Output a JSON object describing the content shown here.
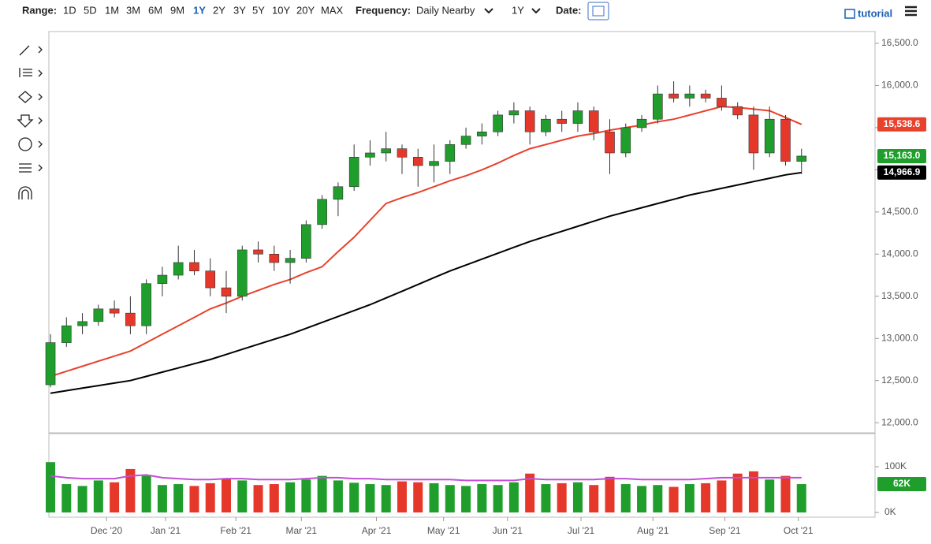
{
  "toolbar": {
    "range_label": "Range:",
    "ranges": [
      "1D",
      "5D",
      "1M",
      "3M",
      "6M",
      "9M",
      "1Y",
      "2Y",
      "3Y",
      "5Y",
      "10Y",
      "20Y",
      "MAX"
    ],
    "active_range": 6,
    "frequency_label": "Frequency:",
    "frequency": "Daily Nearby",
    "period": "1Y",
    "date_label": "Date:",
    "tutorial": "tutorial"
  },
  "chart_data": {
    "type": "candlestick",
    "x": [
      0,
      1,
      2,
      3,
      4,
      5,
      6,
      7,
      8,
      9,
      10,
      11,
      12,
      13,
      14,
      15,
      16,
      17,
      18,
      19,
      20,
      21,
      22,
      23,
      24,
      25,
      26,
      27,
      28,
      29,
      30,
      31,
      32,
      33,
      34,
      35,
      36,
      37,
      38,
      39,
      40,
      41,
      42,
      43,
      44,
      45,
      46,
      47
    ],
    "open": [
      12450,
      12950,
      13150,
      13200,
      13350,
      13300,
      13150,
      13650,
      13750,
      13900,
      13800,
      13600,
      13500,
      14050,
      14000,
      13900,
      13950,
      14350,
      14650,
      14800,
      15150,
      15200,
      15250,
      15150,
      15050,
      15100,
      15300,
      15400,
      15450,
      15650,
      15700,
      15450,
      15600,
      15550,
      15700,
      15450,
      15200,
      15500,
      15600,
      15900,
      15850,
      15900,
      15850,
      15750,
      15650,
      15200,
      15600,
      15100
    ],
    "high": [
      13050,
      13250,
      13300,
      13400,
      13450,
      13500,
      13700,
      13850,
      14100,
      14050,
      13950,
      13800,
      14100,
      14150,
      14100,
      14050,
      14400,
      14700,
      14850,
      15300,
      15350,
      15450,
      15300,
      15250,
      15300,
      15350,
      15500,
      15550,
      15700,
      15800,
      15750,
      15650,
      15700,
      15800,
      15750,
      15600,
      15550,
      15650,
      16000,
      16050,
      16000,
      15950,
      16000,
      15800,
      15750,
      15750,
      15650,
      15250
    ],
    "low": [
      12420,
      12900,
      13050,
      13150,
      13250,
      13050,
      13050,
      13500,
      13700,
      13750,
      13500,
      13300,
      13450,
      13900,
      13800,
      13650,
      13900,
      14300,
      14450,
      14750,
      15050,
      15100,
      14950,
      14800,
      14850,
      14950,
      15250,
      15300,
      15400,
      15550,
      15300,
      15400,
      15450,
      15450,
      15350,
      14950,
      15150,
      15450,
      15550,
      15800,
      15750,
      15800,
      15700,
      15600,
      15000,
      15150,
      15050,
      14950
    ],
    "close": [
      12950,
      13150,
      13200,
      13350,
      13300,
      13150,
      13650,
      13750,
      13900,
      13800,
      13600,
      13500,
      14050,
      14000,
      13900,
      13950,
      14350,
      14650,
      14800,
      15150,
      15200,
      15250,
      15150,
      15050,
      15100,
      15300,
      15400,
      15450,
      15650,
      15700,
      15450,
      15600,
      15550,
      15700,
      15450,
      15200,
      15500,
      15600,
      15900,
      15850,
      15900,
      15850,
      15750,
      15650,
      15200,
      15600,
      15100,
      15163
    ],
    "close_label": "15,163.0",
    "up_color": "#1f9e2c",
    "down_color": "#e5382a",
    "moving_averages": [
      {
        "color": "#e8412c",
        "last_label": "15,538.6",
        "values": [
          12550,
          12610,
          12670,
          12730,
          12790,
          12850,
          12950,
          13050,
          13150,
          13250,
          13350,
          13420,
          13500,
          13570,
          13640,
          13700,
          13780,
          13850,
          14030,
          14200,
          14400,
          14600,
          14670,
          14730,
          14800,
          14870,
          14930,
          15000,
          15080,
          15170,
          15250,
          15300,
          15350,
          15400,
          15430,
          15470,
          15500,
          15530,
          15570,
          15600,
          15650,
          15700,
          15750,
          15740,
          15720,
          15700,
          15620,
          15538.6
        ]
      },
      {
        "color": "#000000",
        "last_label": "14,966.9",
        "values": [
          12350,
          12380,
          12410,
          12440,
          12470,
          12500,
          12550,
          12600,
          12650,
          12700,
          12750,
          12810,
          12870,
          12930,
          12990,
          13050,
          13120,
          13190,
          13260,
          13330,
          13400,
          13480,
          13560,
          13640,
          13720,
          13800,
          13870,
          13940,
          14010,
          14080,
          14150,
          14210,
          14270,
          14330,
          14390,
          14450,
          14500,
          14550,
          14600,
          14650,
          14700,
          14740,
          14780,
          14820,
          14860,
          14900,
          14940,
          14966.9
        ]
      }
    ],
    "ylim": [
      11880,
      16640
    ],
    "yticks": [
      {
        "value": 12000,
        "label": "12,000.0"
      },
      {
        "value": 12500,
        "label": "12,500.0"
      },
      {
        "value": 13000,
        "label": "13,000.0"
      },
      {
        "value": 13500,
        "label": "13,500.0"
      },
      {
        "value": 14000,
        "label": "14,000.0"
      },
      {
        "value": 14500,
        "label": "14,500.0"
      },
      {
        "value": 15000,
        "label": "15,000.0"
      },
      {
        "value": 15500,
        "label": "15,500.0"
      },
      {
        "value": 16000,
        "label": "16,000.0"
      },
      {
        "value": 16500,
        "label": "16,500.0"
      }
    ],
    "xlim": [
      -0.1,
      51.6
    ],
    "xticks": [
      {
        "value": 3.5,
        "label": "Dec '20"
      },
      {
        "value": 7.2,
        "label": "Jan '21"
      },
      {
        "value": 11.6,
        "label": "Feb '21"
      },
      {
        "value": 15.7,
        "label": "Mar '21"
      },
      {
        "value": 20.4,
        "label": "Apr '21"
      },
      {
        "value": 24.6,
        "label": "May '21"
      },
      {
        "value": 28.6,
        "label": "Jun '21"
      },
      {
        "value": 33.2,
        "label": "Jul '21"
      },
      {
        "value": 37.7,
        "label": "Aug '21"
      },
      {
        "value": 42.2,
        "label": "Sep '21"
      },
      {
        "value": 46.8,
        "label": "Oct '21"
      }
    ],
    "volume": {
      "values": [
        110000,
        62000,
        58000,
        70000,
        66000,
        95000,
        80000,
        60000,
        62000,
        58000,
        64000,
        75000,
        70000,
        60000,
        62000,
        66000,
        72000,
        80000,
        70000,
        65000,
        62000,
        60000,
        68000,
        66000,
        64000,
        60000,
        58000,
        62000,
        60000,
        66000,
        85000,
        62000,
        64000,
        66000,
        60000,
        78000,
        62000,
        58000,
        60000,
        56000,
        62000,
        64000,
        70000,
        85000,
        90000,
        72000,
        80000,
        62000
      ],
      "last_label": "62K",
      "ylim": [
        0,
        169000
      ],
      "yticks": [
        {
          "value": 0,
          "label": "0K"
        },
        {
          "value": 100000,
          "label": "100K"
        }
      ],
      "average": {
        "color": "#c04fd6",
        "values": [
          80000,
          76000,
          74000,
          74000,
          74000,
          80000,
          82000,
          76000,
          74000,
          72000,
          72000,
          74000,
          74000,
          72000,
          72000,
          72000,
          74000,
          76000,
          76000,
          74000,
          74000,
          72000,
          72000,
          72000,
          72000,
          72000,
          70000,
          70000,
          70000,
          70000,
          74000,
          72000,
          72000,
          72000,
          72000,
          74000,
          74000,
          72000,
          72000,
          72000,
          72000,
          74000,
          76000,
          76000,
          76000,
          76000,
          76000,
          76000
        ]
      }
    }
  }
}
